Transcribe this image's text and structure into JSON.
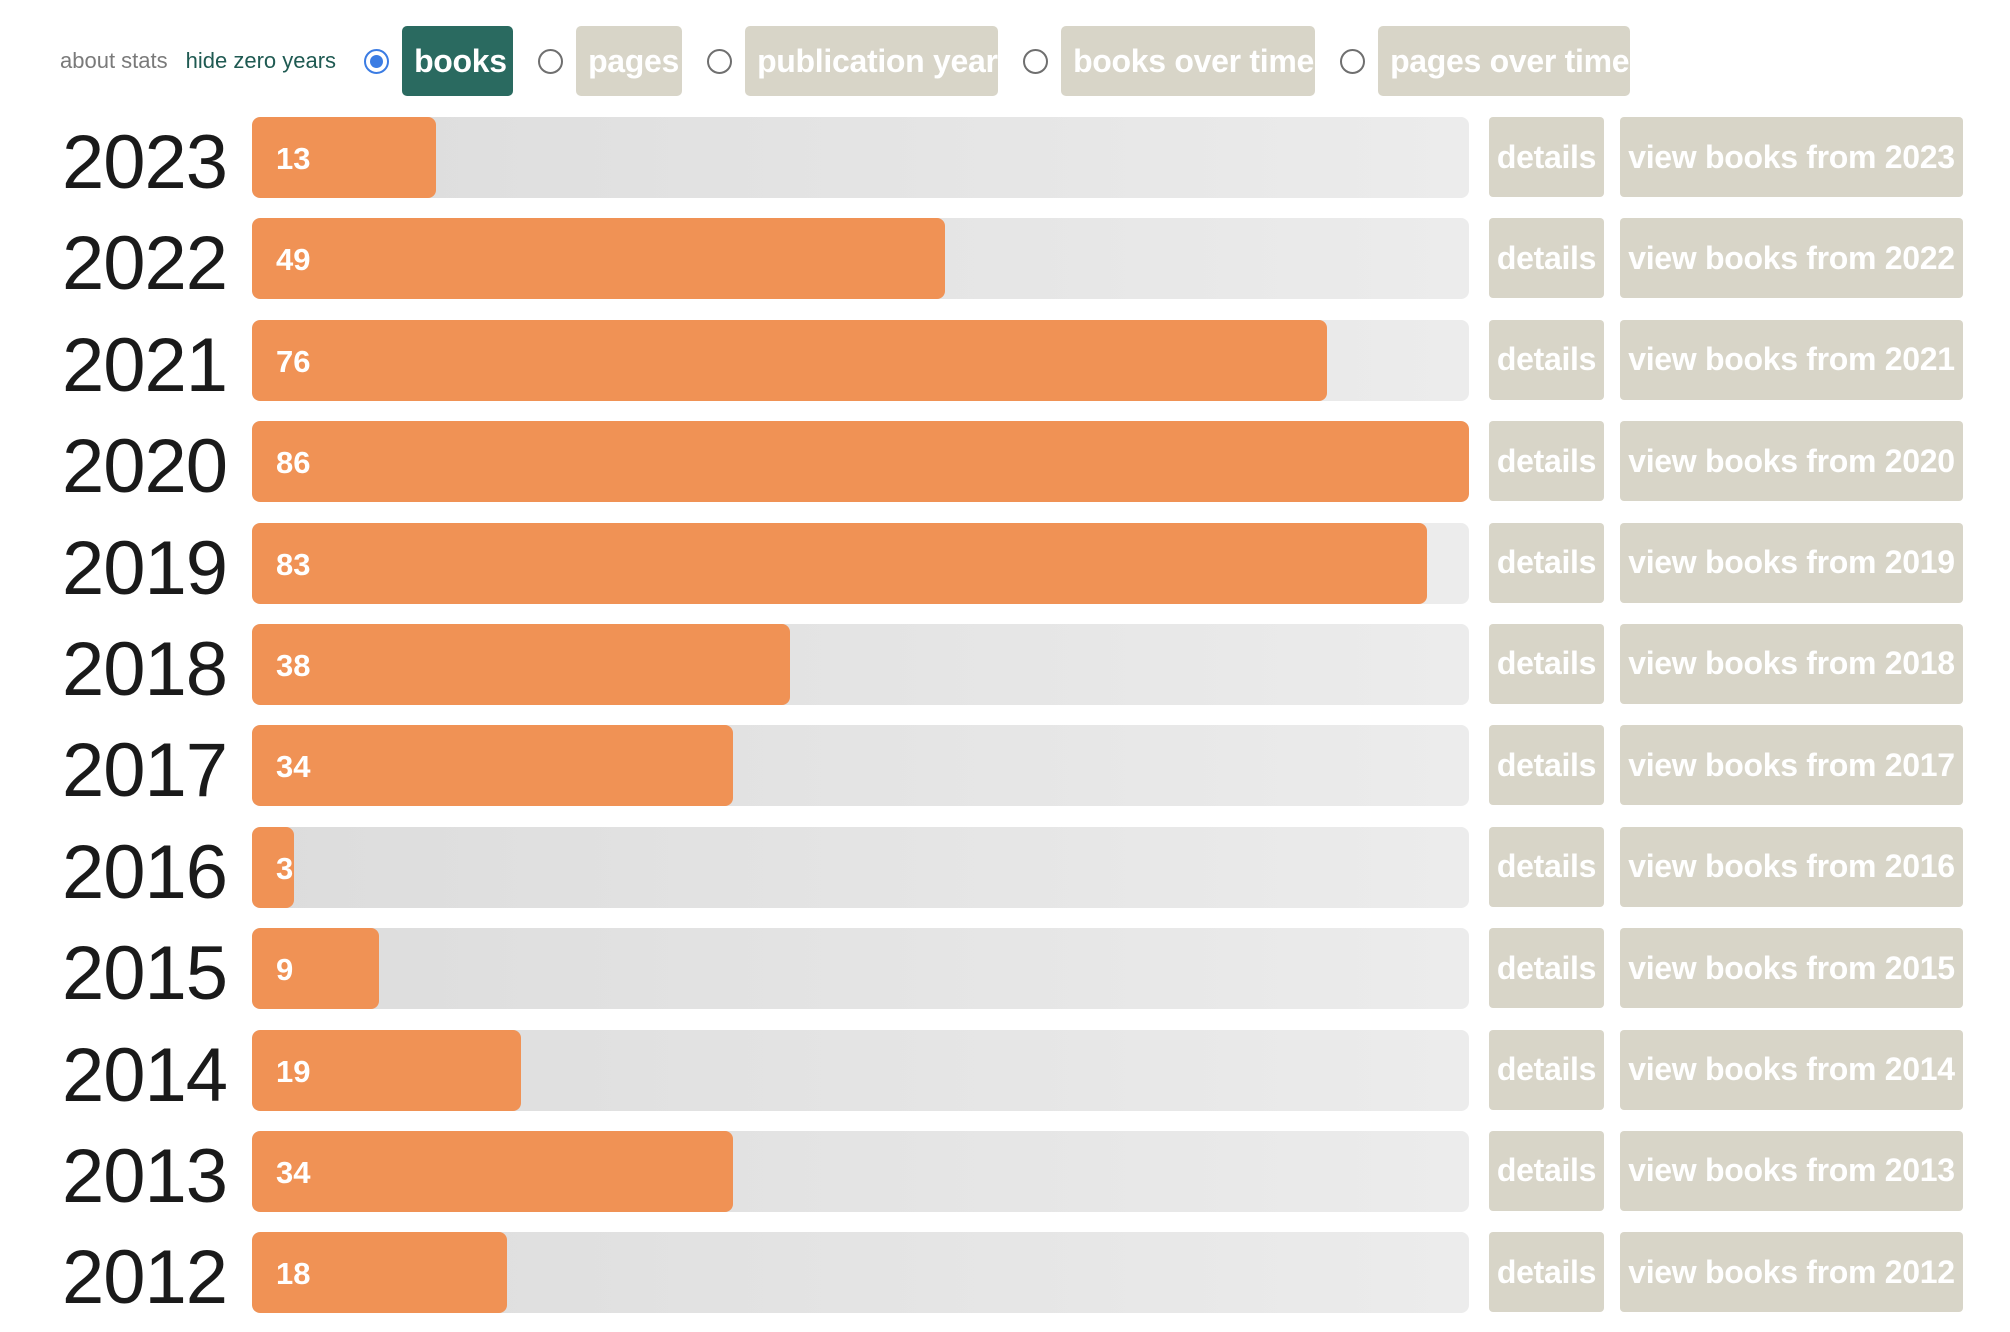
{
  "toolbar": {
    "about_label": "about stats",
    "hide_label": "hide zero years",
    "modes": [
      {
        "label": "books",
        "selected": true
      },
      {
        "label": "pages",
        "selected": false
      },
      {
        "label": "publication year",
        "selected": false
      },
      {
        "label": "books over time",
        "selected": false
      },
      {
        "label": "pages over time",
        "selected": false
      }
    ]
  },
  "colors": {
    "bar_fill": "#f09255",
    "track": "#e4e4e4",
    "button": "#d8d5c8",
    "active_button": "#2a6a60",
    "radio_checked": "#3b7ce3"
  },
  "max_books": 86,
  "details_label": "details",
  "rows": [
    {
      "year": "2023",
      "count": "13",
      "value": 13,
      "view_label": "view books from 2023"
    },
    {
      "year": "2022",
      "count": "49",
      "value": 49,
      "view_label": "view books from 2022"
    },
    {
      "year": "2021",
      "count": "76",
      "value": 76,
      "view_label": "view books from 2021"
    },
    {
      "year": "2020",
      "count": "86",
      "value": 86,
      "view_label": "view books from 2020"
    },
    {
      "year": "2019",
      "count": "83",
      "value": 83,
      "view_label": "view books from 2019"
    },
    {
      "year": "2018",
      "count": "38",
      "value": 38,
      "view_label": "view books from 2018"
    },
    {
      "year": "2017",
      "count": "34",
      "value": 34,
      "view_label": "view books from 2017"
    },
    {
      "year": "2016",
      "count": "3",
      "value": 3,
      "view_label": "view books from 2016"
    },
    {
      "year": "2015",
      "count": "9",
      "value": 9,
      "view_label": "view books from 2015"
    },
    {
      "year": "2014",
      "count": "19",
      "value": 19,
      "view_label": "view books from 2014"
    },
    {
      "year": "2013",
      "count": "34",
      "value": 34,
      "view_label": "view books from 2013"
    },
    {
      "year": "2012",
      "count": "18",
      "value": 18,
      "view_label": "view books from 2012"
    }
  ]
}
